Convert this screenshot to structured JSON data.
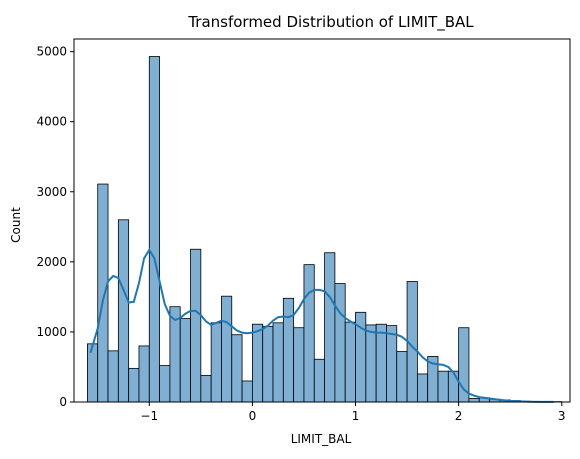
{
  "chart_data": {
    "type": "bar",
    "title": "Transformed Distribution of LIMIT_BAL",
    "xlabel": "LIMIT_BAL",
    "ylabel": "Count",
    "xlim": [
      -1.73,
      3.08
    ],
    "ylim": [
      0,
      5180
    ],
    "x_ticks": [
      -1,
      0,
      1,
      2,
      3
    ],
    "y_ticks": [
      0,
      1000,
      2000,
      3000,
      4000,
      5000
    ],
    "bin_start": -1.6,
    "bin_width": 0.1,
    "counts": [
      830,
      3110,
      730,
      2600,
      480,
      800,
      4930,
      520,
      1360,
      1190,
      2180,
      380,
      1130,
      1510,
      960,
      300,
      1110,
      1080,
      1130,
      1480,
      1060,
      1960,
      610,
      2130,
      1690,
      1140,
      1280,
      1100,
      1110,
      1090,
      720,
      1720,
      400,
      650,
      440,
      440,
      1060,
      50,
      60,
      40,
      30,
      20,
      10,
      5,
      5,
      5
    ],
    "kde": {
      "x": [
        -1.57,
        -1.5,
        -1.45,
        -1.4,
        -1.35,
        -1.3,
        -1.25,
        -1.2,
        -1.15,
        -1.1,
        -1.05,
        -1.0,
        -0.95,
        -0.9,
        -0.85,
        -0.8,
        -0.75,
        -0.7,
        -0.65,
        -0.6,
        -0.55,
        -0.5,
        -0.45,
        -0.4,
        -0.35,
        -0.3,
        -0.25,
        -0.2,
        -0.15,
        -0.1,
        -0.05,
        0.0,
        0.05,
        0.1,
        0.15,
        0.2,
        0.25,
        0.3,
        0.35,
        0.4,
        0.45,
        0.5,
        0.55,
        0.6,
        0.65,
        0.7,
        0.75,
        0.8,
        0.85,
        0.9,
        0.95,
        1.0,
        1.05,
        1.1,
        1.15,
        1.2,
        1.25,
        1.3,
        1.35,
        1.4,
        1.45,
        1.5,
        1.55,
        1.6,
        1.65,
        1.7,
        1.75,
        1.8,
        1.85,
        1.9,
        1.95,
        2.0,
        2.05,
        2.1,
        2.15,
        2.2,
        2.3,
        2.4,
        2.5,
        2.6,
        2.7,
        2.8,
        2.92
      ],
      "y": [
        700,
        1050,
        1450,
        1720,
        1800,
        1770,
        1600,
        1420,
        1430,
        1700,
        2050,
        2170,
        2050,
        1720,
        1400,
        1230,
        1170,
        1200,
        1260,
        1300,
        1300,
        1240,
        1150,
        1100,
        1130,
        1160,
        1140,
        1080,
        1020,
        990,
        980,
        990,
        1010,
        1040,
        1090,
        1160,
        1210,
        1220,
        1210,
        1240,
        1340,
        1470,
        1560,
        1600,
        1600,
        1580,
        1500,
        1380,
        1270,
        1200,
        1150,
        1110,
        1060,
        1020,
        1000,
        990,
        990,
        980,
        970,
        960,
        930,
        870,
        790,
        720,
        640,
        580,
        550,
        540,
        530,
        500,
        420,
        290,
        180,
        120,
        90,
        70,
        50,
        30,
        15,
        8,
        4,
        2,
        1
      ]
    },
    "colors": {
      "bar_fill": "#7fb0d4",
      "bar_edge": "#000000",
      "kde_line": "#1f77b4"
    },
    "grid": false,
    "legend": "none"
  }
}
